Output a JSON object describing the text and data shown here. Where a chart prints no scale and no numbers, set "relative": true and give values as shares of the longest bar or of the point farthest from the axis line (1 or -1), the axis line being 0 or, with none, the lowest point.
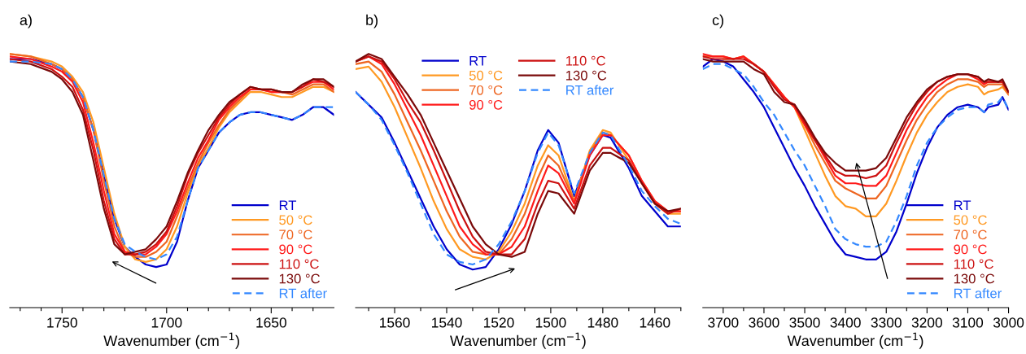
{
  "chart_data": [
    {
      "type": "line",
      "title": "a)",
      "xlabel": "Wavenumber (cm$^{−1}$)",
      "relative": true,
      "legend": "bottom right",
      "grid": false,
      "x": [
        1775,
        1765,
        1755,
        1750,
        1745,
        1740,
        1735,
        1730,
        1725,
        1720,
        1715,
        1710,
        1705,
        1700,
        1695,
        1690,
        1685,
        1680,
        1675,
        1670,
        1665,
        1660,
        1655,
        1650,
        1645,
        1640,
        1635,
        1630,
        1625,
        1620
      ],
      "xlim": [
        1775,
        1620
      ],
      "xticks": [
        {
          "value": 1770,
          "label": null
        },
        {
          "value": 1760,
          "label": null
        },
        1750,
        {
          "value": 1740,
          "label": null
        },
        {
          "value": 1730,
          "label": null
        },
        {
          "value": 1720,
          "label": null
        },
        {
          "value": 1710,
          "label": null
        },
        1700,
        {
          "value": 1690,
          "label": null
        },
        {
          "value": 1680,
          "label": null
        },
        {
          "value": 1670,
          "label": null
        },
        {
          "value": 1660,
          "label": null
        },
        1650,
        {
          "value": 1640,
          "label": null
        },
        {
          "value": 1630,
          "label": null
        }
      ],
      "series": [
        {
          "name": "RT",
          "color": "#0000cc",
          "line_style": "solid",
          "values": [
            0.98,
            0.98,
            0.96,
            0.94,
            0.9,
            0.83,
            0.7,
            0.52,
            0.35,
            0.24,
            0.2,
            0.17,
            0.16,
            0.17,
            0.26,
            0.42,
            0.55,
            0.62,
            0.69,
            0.73,
            0.76,
            0.77,
            0.77,
            0.76,
            0.75,
            0.74,
            0.76,
            0.79,
            0.79,
            0.76
          ]
        },
        {
          "name": "50 °C",
          "color": "#ff9922",
          "line_style": "solid",
          "values": [
            1.0,
            0.99,
            0.97,
            0.95,
            0.91,
            0.85,
            0.73,
            0.55,
            0.37,
            0.24,
            0.19,
            0.18,
            0.19,
            0.23,
            0.32,
            0.45,
            0.56,
            0.63,
            0.71,
            0.77,
            0.81,
            0.85,
            0.85,
            0.84,
            0.83,
            0.83,
            0.85,
            0.87,
            0.87,
            0.85
          ]
        },
        {
          "name": "70 °C",
          "color": "#ee6622",
          "line_style": "solid",
          "values": [
            1.0,
            0.99,
            0.96,
            0.94,
            0.9,
            0.83,
            0.7,
            0.5,
            0.32,
            0.22,
            0.2,
            0.2,
            0.22,
            0.26,
            0.36,
            0.47,
            0.57,
            0.65,
            0.72,
            0.78,
            0.82,
            0.86,
            0.86,
            0.85,
            0.85,
            0.84,
            0.86,
            0.88,
            0.88,
            0.85
          ]
        },
        {
          "name": "90 °C",
          "color": "#ff1a1a",
          "line_style": "solid",
          "values": [
            0.99,
            0.98,
            0.95,
            0.93,
            0.89,
            0.81,
            0.65,
            0.46,
            0.29,
            0.22,
            0.21,
            0.21,
            0.24,
            0.29,
            0.38,
            0.49,
            0.59,
            0.66,
            0.74,
            0.79,
            0.83,
            0.86,
            0.86,
            0.85,
            0.85,
            0.85,
            0.87,
            0.89,
            0.89,
            0.86
          ]
        },
        {
          "name": "110 °C",
          "color": "#cc1111",
          "line_style": "solid",
          "values": [
            0.98,
            0.97,
            0.94,
            0.91,
            0.87,
            0.78,
            0.62,
            0.42,
            0.27,
            0.21,
            0.21,
            0.22,
            0.25,
            0.3,
            0.4,
            0.52,
            0.61,
            0.68,
            0.75,
            0.8,
            0.84,
            0.87,
            0.86,
            0.86,
            0.85,
            0.85,
            0.87,
            0.9,
            0.89,
            0.87
          ]
        },
        {
          "name": "130 °C",
          "color": "#7a0a0a",
          "line_style": "solid",
          "values": [
            0.97,
            0.96,
            0.93,
            0.9,
            0.85,
            0.76,
            0.58,
            0.39,
            0.25,
            0.21,
            0.22,
            0.23,
            0.27,
            0.32,
            0.42,
            0.53,
            0.62,
            0.7,
            0.76,
            0.81,
            0.84,
            0.87,
            0.86,
            0.86,
            0.85,
            0.85,
            0.88,
            0.9,
            0.9,
            0.87
          ]
        },
        {
          "name": "RT after",
          "color": "#3388ff",
          "line_style": "dashed",
          "values": [
            0.97,
            0.97,
            0.96,
            0.94,
            0.9,
            0.83,
            0.7,
            0.52,
            0.35,
            0.25,
            0.22,
            0.2,
            0.19,
            0.21,
            0.28,
            0.42,
            0.55,
            0.62,
            0.69,
            0.73,
            0.76,
            0.77,
            0.77,
            0.76,
            0.75,
            0.74,
            0.76,
            0.79,
            0.79,
            0.79
          ]
        }
      ]
    },
    {
      "type": "line",
      "title": "b)",
      "xlabel": "Wavenumber (cm$^{−1}$)",
      "relative": true,
      "legend": "top",
      "grid": false,
      "x": [
        1575,
        1570,
        1565,
        1560,
        1555,
        1550,
        1545,
        1540,
        1535,
        1530,
        1525,
        1520,
        1515,
        1510,
        1505,
        1501,
        1497,
        1491,
        1485,
        1480,
        1477,
        1470,
        1465,
        1460,
        1455,
        1450
      ],
      "xlim": [
        1575,
        1450
      ],
      "xticks": [
        {
          "value": 1570,
          "label": null
        },
        1560,
        {
          "value": 1550,
          "label": null
        },
        1540,
        {
          "value": 1530,
          "label": null
        },
        1520,
        {
          "value": 1510,
          "label": null
        },
        1500,
        {
          "value": 1490,
          "label": null
        },
        1480,
        {
          "value": 1470,
          "label": null
        },
        1460,
        {
          "value": 1450,
          "label": null
        }
      ],
      "series": [
        {
          "name": "RT",
          "color": "#0000cc",
          "line_style": "solid",
          "values": [
            0.85,
            0.8,
            0.75,
            0.65,
            0.54,
            0.43,
            0.32,
            0.23,
            0.17,
            0.15,
            0.16,
            0.23,
            0.33,
            0.46,
            0.62,
            0.7,
            0.65,
            0.44,
            0.6,
            0.68,
            0.67,
            0.55,
            0.44,
            0.38,
            0.32,
            0.32
          ]
        },
        {
          "name": "50 °C",
          "color": "#ff9922",
          "line_style": "solid",
          "values": [
            0.94,
            0.95,
            0.89,
            0.79,
            0.67,
            0.55,
            0.42,
            0.31,
            0.23,
            0.2,
            0.19,
            0.22,
            0.3,
            0.41,
            0.56,
            0.64,
            0.6,
            0.42,
            0.62,
            0.7,
            0.69,
            0.58,
            0.49,
            0.41,
            0.37,
            0.37
          ]
        },
        {
          "name": "70 °C",
          "color": "#ee6622",
          "line_style": "solid",
          "values": [
            0.96,
            0.97,
            0.93,
            0.84,
            0.73,
            0.62,
            0.5,
            0.38,
            0.28,
            0.22,
            0.21,
            0.21,
            0.27,
            0.37,
            0.51,
            0.6,
            0.56,
            0.42,
            0.61,
            0.69,
            0.68,
            0.6,
            0.5,
            0.42,
            0.38,
            0.38
          ]
        },
        {
          "name": "90 °C",
          "color": "#ff1a1a",
          "line_style": "solid",
          "values": [
            0.97,
            0.99,
            0.96,
            0.88,
            0.78,
            0.68,
            0.56,
            0.44,
            0.32,
            0.25,
            0.21,
            0.21,
            0.24,
            0.32,
            0.46,
            0.56,
            0.53,
            0.41,
            0.6,
            0.68,
            0.68,
            0.6,
            0.5,
            0.42,
            0.38,
            0.38
          ]
        },
        {
          "name": "110 °C",
          "color": "#cc1111",
          "line_style": "solid",
          "values": [
            0.97,
            0.99,
            0.97,
            0.9,
            0.81,
            0.73,
            0.62,
            0.5,
            0.38,
            0.28,
            0.22,
            0.21,
            0.21,
            0.27,
            0.41,
            0.5,
            0.49,
            0.39,
            0.56,
            0.63,
            0.63,
            0.58,
            0.49,
            0.41,
            0.37,
            0.39
          ]
        },
        {
          "name": "130 °C",
          "color": "#7a0a0a",
          "line_style": "solid",
          "values": [
            0.97,
            1.0,
            0.98,
            0.91,
            0.84,
            0.76,
            0.65,
            0.54,
            0.43,
            0.32,
            0.25,
            0.21,
            0.2,
            0.22,
            0.37,
            0.46,
            0.45,
            0.37,
            0.54,
            0.61,
            0.61,
            0.57,
            0.49,
            0.41,
            0.38,
            0.39
          ]
        },
        {
          "name": "RT after",
          "color": "#3388ff",
          "line_style": "dashed",
          "values": [
            0.85,
            0.8,
            0.74,
            0.64,
            0.53,
            0.41,
            0.29,
            0.21,
            0.18,
            0.17,
            0.19,
            0.25,
            0.34,
            0.46,
            0.61,
            0.69,
            0.64,
            0.45,
            0.61,
            0.69,
            0.68,
            0.56,
            0.46,
            0.4,
            0.35,
            0.33
          ]
        }
      ]
    },
    {
      "type": "line",
      "title": "c)",
      "xlabel": "Wavenumber (cm$^{−1}$)",
      "relative": true,
      "legend": "bottom right",
      "grid": false,
      "x": [
        3750,
        3725,
        3700,
        3675,
        3650,
        3625,
        3600,
        3575,
        3550,
        3525,
        3500,
        3475,
        3450,
        3425,
        3400,
        3375,
        3350,
        3325,
        3300,
        3275,
        3250,
        3225,
        3200,
        3175,
        3150,
        3125,
        3100,
        3075,
        3060,
        3050,
        3025,
        3015,
        3000
      ],
      "xlim": [
        3750,
        3000
      ],
      "xticks": [
        3700,
        {
          "value": 3650,
          "label": null
        },
        3600,
        {
          "value": 3550,
          "label": null
        },
        3500,
        {
          "value": 3450,
          "label": null
        },
        3400,
        {
          "value": 3350,
          "label": null
        },
        3300,
        {
          "value": 3250,
          "label": null
        },
        3200,
        {
          "value": 3150,
          "label": null
        },
        3100,
        {
          "value": 3050,
          "label": null
        },
        3000
      ],
      "series": [
        {
          "name": "RT",
          "color": "#0000cc",
          "line_style": "solid",
          "values": [
            0.95,
            0.98,
            0.97,
            0.95,
            0.9,
            0.85,
            0.79,
            0.71,
            0.63,
            0.55,
            0.48,
            0.4,
            0.33,
            0.26,
            0.21,
            0.2,
            0.19,
            0.19,
            0.22,
            0.3,
            0.41,
            0.53,
            0.63,
            0.71,
            0.76,
            0.79,
            0.8,
            0.79,
            0.77,
            0.79,
            0.8,
            0.83,
            0.78
          ]
        },
        {
          "name": "50 °C",
          "color": "#ff9922",
          "line_style": "solid",
          "values": [
            null,
            null,
            0.98,
            0.98,
            0.99,
            0.96,
            0.93,
            0.88,
            0.83,
            0.79,
            0.7,
            0.61,
            0.52,
            0.44,
            0.4,
            0.39,
            0.36,
            0.36,
            0.41,
            0.5,
            0.6,
            0.69,
            0.76,
            0.81,
            0.85,
            0.87,
            0.88,
            0.87,
            0.84,
            0.85,
            0.86,
            0.87,
            0.84
          ]
        },
        {
          "name": "70 °C",
          "color": "#ee6622",
          "line_style": "solid",
          "values": [
            0.99,
            0.99,
            0.99,
            0.98,
            0.99,
            0.96,
            0.93,
            0.88,
            0.83,
            0.79,
            0.72,
            0.64,
            0.57,
            0.5,
            0.47,
            0.45,
            0.43,
            0.43,
            0.48,
            0.57,
            0.66,
            0.74,
            0.8,
            0.85,
            0.88,
            0.9,
            0.9,
            0.89,
            0.87,
            0.88,
            0.88,
            0.88,
            0.84
          ]
        },
        {
          "name": "90 °C",
          "color": "#ff1a1a",
          "line_style": "solid",
          "values": [
            1.0,
            0.99,
            0.99,
            0.98,
            0.99,
            0.96,
            0.93,
            0.88,
            0.83,
            0.79,
            0.72,
            0.66,
            0.59,
            0.52,
            0.49,
            0.49,
            0.48,
            0.48,
            0.52,
            0.61,
            0.7,
            0.77,
            0.83,
            0.87,
            0.9,
            0.92,
            0.92,
            0.9,
            0.88,
            0.89,
            0.89,
            0.89,
            0.85
          ]
        },
        {
          "name": "110 °C",
          "color": "#cc1111",
          "line_style": "solid",
          "values": [
            0.99,
            0.98,
            0.98,
            0.98,
            0.98,
            0.96,
            0.93,
            0.87,
            0.82,
            0.8,
            0.73,
            0.66,
            0.6,
            0.54,
            0.52,
            0.52,
            0.51,
            0.52,
            0.56,
            0.65,
            0.73,
            0.8,
            0.85,
            0.89,
            0.91,
            0.92,
            0.92,
            0.91,
            0.89,
            0.89,
            0.89,
            0.89,
            0.85
          ]
        },
        {
          "name": "130 °C",
          "color": "#7a0a0a",
          "line_style": "solid",
          "values": [
            0.98,
            0.97,
            0.97,
            0.97,
            0.97,
            0.94,
            0.92,
            0.85,
            0.81,
            0.8,
            0.74,
            0.67,
            0.61,
            0.57,
            0.54,
            0.54,
            0.54,
            0.55,
            0.59,
            0.67,
            0.75,
            0.81,
            0.86,
            0.89,
            0.91,
            0.92,
            0.92,
            0.91,
            0.89,
            0.9,
            0.89,
            0.9,
            0.85
          ]
        },
        {
          "name": "RT after",
          "color": "#3388ff",
          "line_style": "dashed",
          "values": [
            0.94,
            0.96,
            0.96,
            0.94,
            0.92,
            0.87,
            0.81,
            0.76,
            0.69,
            0.62,
            0.56,
            0.48,
            0.4,
            0.31,
            0.27,
            0.25,
            0.24,
            0.24,
            0.26,
            0.34,
            0.44,
            0.56,
            0.65,
            0.71,
            0.75,
            0.78,
            0.79,
            0.79,
            0.77,
            0.8,
            0.81,
            0.83,
            0.78
          ]
        }
      ]
    }
  ]
}
